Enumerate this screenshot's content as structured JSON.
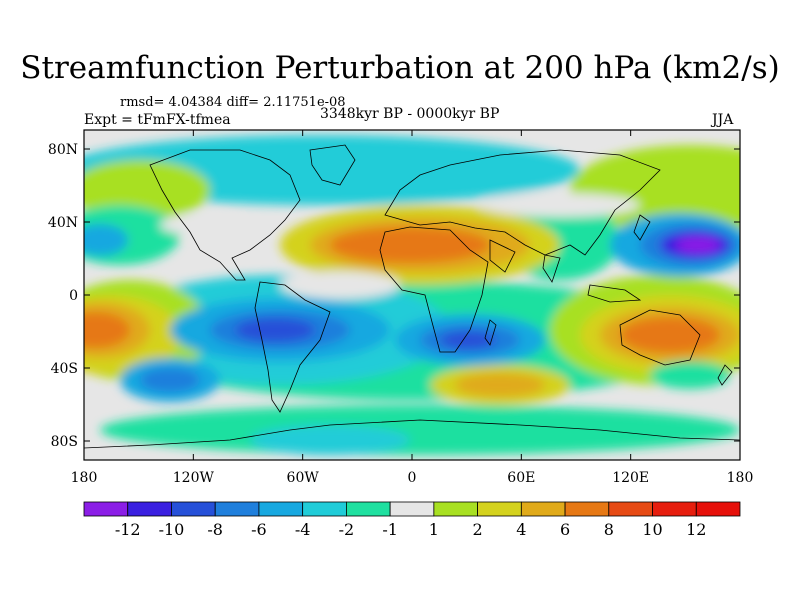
{
  "title": "Streamfunction Perturbation at 200 hPa (km2/s)",
  "stats": "rmsd= 4.04384 diff= 2.11751e-08",
  "experiment": "Expt = tFmFX-tfmea",
  "period": "3348kyr BP - 0000kyr BP",
  "season": "JJA",
  "lat_ticks": [
    "80N",
    "40N",
    "0",
    "40S",
    "80S"
  ],
  "lon_ticks": [
    "180",
    "120W",
    "60W",
    "0",
    "60E",
    "120E",
    "180"
  ],
  "colorbar": {
    "labels": [
      "-12",
      "-10",
      "-8",
      "-6",
      "-4",
      "-2",
      "-1",
      "1",
      "2",
      "4",
      "6",
      "8",
      "10",
      "12"
    ],
    "colors": [
      "#8b1ee6",
      "#3a1fe0",
      "#2650d8",
      "#1f7fdc",
      "#17a8e0",
      "#20ccd8",
      "#1fe0a0",
      "#e6e6e6",
      "#a8e022",
      "#d4d21e",
      "#e0aa1a",
      "#e67814",
      "#e64a14",
      "#e61e0e",
      "#e6100a"
    ]
  },
  "colors": {
    "background_neutral": "#e6e6e6",
    "coastline": "#000000"
  }
}
